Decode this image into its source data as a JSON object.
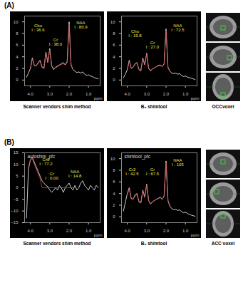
{
  "chart_data": [
    {
      "type": "line",
      "caption": "Scanner vendors shim method",
      "xlabel": "ppm",
      "xlim": [
        4.3,
        0.4
      ],
      "xticks": [
        4,
        3,
        2,
        1
      ],
      "ylim": [
        -1,
        11
      ],
      "yticks": [
        0,
        2,
        4,
        6,
        8,
        10
      ],
      "x": [
        4.2,
        4.1,
        4.0,
        3.9,
        3.8,
        3.7,
        3.6,
        3.5,
        3.4,
        3.3,
        3.2,
        3.1,
        3.0,
        2.9,
        2.8,
        2.7,
        2.6,
        2.5,
        2.4,
        2.3,
        2.2,
        2.1,
        2.0,
        1.9,
        1.8,
        1.7,
        1.6,
        1.5,
        1.4,
        1.3,
        1.2,
        1.1,
        1.0,
        0.9,
        0.8,
        0.7,
        0.6,
        0.5
      ],
      "series": [
        {
          "color": "#ffffff",
          "line_style": "solid",
          "values": [
            0.5,
            1.2,
            2.0,
            3.8,
            2.5,
            2.4,
            3.0,
            3.4,
            2.2,
            2.0,
            4.8,
            3.0,
            5.4,
            2.4,
            1.8,
            2.2,
            2.4,
            2.6,
            2.8,
            3.0,
            2.6,
            3.2,
            10.0,
            2.6,
            1.8,
            1.5,
            1.3,
            1.4,
            1.2,
            1.4,
            1.0,
            0.8,
            0.9,
            0.7,
            0.6,
            0.4,
            0.3,
            0.2
          ]
        },
        {
          "color": "#e04040",
          "line_style": "dashed",
          "values": [
            null,
            null,
            1.8,
            3.6,
            2.6,
            2.4,
            2.9,
            3.2,
            2.3,
            2.1,
            4.6,
            3.0,
            5.2,
            2.5,
            2.0,
            2.1,
            2.3,
            2.5,
            2.7,
            2.8,
            2.6,
            3.0,
            9.6,
            2.5,
            1.7,
            null,
            null,
            null,
            null,
            null,
            null,
            null,
            null,
            null,
            null,
            null,
            null,
            null
          ]
        }
      ],
      "annotations": [
        {
          "x": 3.6,
          "y": 9,
          "text": "Cho\nI : 36.6"
        },
        {
          "x": 2.7,
          "y": 6.5,
          "text": "Cr\nI : 38.0"
        },
        {
          "x": 1.4,
          "y": 9.5,
          "text": "NAA\nI : 80.9"
        }
      ]
    },
    {
      "type": "line",
      "caption": "B₀ shimtool",
      "xlabel": "ppm",
      "xlim": [
        4.3,
        0.4
      ],
      "xticks": [
        4,
        3,
        2,
        1
      ],
      "ylim": [
        -1,
        11
      ],
      "yticks": [
        0,
        2,
        4,
        6,
        8,
        10
      ],
      "x": [
        4.2,
        4.1,
        4.0,
        3.9,
        3.8,
        3.7,
        3.6,
        3.5,
        3.4,
        3.3,
        3.2,
        3.1,
        3.0,
        2.9,
        2.8,
        2.7,
        2.6,
        2.5,
        2.4,
        2.3,
        2.2,
        2.1,
        2.0,
        1.9,
        1.8,
        1.7,
        1.6,
        1.5,
        1.4,
        1.3,
        1.2,
        1.1,
        1.0,
        0.9,
        0.8,
        0.7,
        0.6,
        0.5
      ],
      "series": [
        {
          "color": "#ffffff",
          "line_style": "solid",
          "values": [
            0.4,
            1.0,
            1.8,
            3.4,
            2.0,
            2.2,
            2.8,
            3.0,
            1.8,
            1.6,
            3.8,
            2.6,
            4.6,
            2.0,
            1.6,
            1.9,
            2.1,
            2.3,
            2.5,
            2.6,
            2.3,
            2.8,
            8.8,
            2.2,
            1.5,
            1.2,
            1.1,
            1.2,
            1.0,
            1.1,
            0.8,
            0.6,
            0.7,
            0.5,
            0.4,
            0.3,
            0.2,
            0.1
          ]
        },
        {
          "color": "#e04040",
          "line_style": "dashed",
          "values": [
            null,
            null,
            1.6,
            3.2,
            2.1,
            2.2,
            2.7,
            2.9,
            1.9,
            1.7,
            3.6,
            2.6,
            4.4,
            2.1,
            1.7,
            1.9,
            2.1,
            2.3,
            2.4,
            2.5,
            2.3,
            2.7,
            8.5,
            2.1,
            1.4,
            null,
            null,
            null,
            null,
            null,
            null,
            null,
            null,
            null,
            null,
            null,
            null,
            null
          ]
        }
      ],
      "annotations": [
        {
          "x": 3.6,
          "y": 8,
          "text": "Cho\nI : 19.8"
        },
        {
          "x": 2.7,
          "y": 6,
          "text": "Cr\nI : 27.0"
        },
        {
          "x": 1.4,
          "y": 9,
          "text": "NAA\nI : 72.5"
        }
      ]
    },
    {
      "type": "line",
      "title": "autoshim_pfc",
      "caption": "Scanner vendors shim method",
      "xlabel": "ppm",
      "xlim": [
        4.3,
        0.4
      ],
      "xticks": [
        4,
        3,
        2,
        1
      ],
      "ylim": [
        -15,
        15
      ],
      "yticks": [
        -15,
        -10,
        -5,
        0,
        5,
        10,
        15
      ],
      "x": [
        4.2,
        4.1,
        4.0,
        3.9,
        3.8,
        3.7,
        3.6,
        3.5,
        3.4,
        3.3,
        3.2,
        3.1,
        3.0,
        2.9,
        2.8,
        2.7,
        2.6,
        2.5,
        2.4,
        2.3,
        2.2,
        2.1,
        2.0,
        1.9,
        1.8,
        1.7,
        1.6,
        1.5,
        1.4,
        1.3,
        1.2,
        1.1,
        1.0,
        0.9,
        0.8,
        0.7,
        0.6,
        0.5
      ],
      "series": [
        {
          "color": "#ffffff",
          "line_style": "solid",
          "values": [
            -13,
            8,
            12,
            13,
            11,
            9,
            7,
            5,
            3,
            2,
            1,
            0.5,
            -1,
            -2,
            -1,
            0,
            -1,
            1,
            0,
            -2,
            0,
            1,
            2,
            0,
            -1,
            1,
            -1,
            0,
            2,
            3,
            1,
            0,
            -1,
            1,
            0,
            -1,
            1,
            0
          ]
        },
        {
          "color": "#e04040",
          "line_style": "solid",
          "values": [
            null,
            9,
            12,
            12.5,
            10,
            8,
            6,
            4,
            0,
            0,
            0,
            0,
            0,
            0,
            0,
            0,
            0,
            0,
            0,
            0,
            0,
            0,
            0,
            0,
            0,
            null,
            null,
            null,
            null,
            null,
            null,
            null,
            null,
            null,
            null,
            null,
            null,
            null
          ]
        }
      ],
      "annotations": [
        {
          "x": 3.2,
          "y": 11,
          "text": "Cr2\nI : 77.2"
        },
        {
          "x": 2.9,
          "y": 5,
          "text": "Cr\nI : 0.00"
        },
        {
          "x": 1.7,
          "y": 6,
          "text": "NAA\nI : 14.8"
        }
      ]
    },
    {
      "type": "line",
      "title": "shimtool_pfc",
      "caption": "B₀ shimtool",
      "xlabel": "ppm",
      "xlim": [
        4.3,
        0.4
      ],
      "xticks": [
        4,
        3,
        2,
        1
      ],
      "ylim": [
        -1,
        11
      ],
      "yticks": [
        0,
        2,
        4,
        6,
        8,
        10
      ],
      "x": [
        4.2,
        4.1,
        4.0,
        3.9,
        3.8,
        3.7,
        3.6,
        3.5,
        3.4,
        3.3,
        3.2,
        3.1,
        3.0,
        2.9,
        2.8,
        2.7,
        2.6,
        2.5,
        2.4,
        2.3,
        2.2,
        2.1,
        2.0,
        1.9,
        1.8,
        1.7,
        1.6,
        1.5,
        1.4,
        1.3,
        1.2,
        1.1,
        1.0,
        0.9,
        0.8,
        0.7,
        0.6,
        0.5
      ],
      "series": [
        {
          "color": "#ffffff",
          "line_style": "solid",
          "values": [
            1.0,
            2.5,
            4.0,
            5.0,
            3.2,
            3.0,
            3.8,
            4.0,
            2.6,
            2.4,
            4.6,
            3.4,
            5.6,
            2.8,
            2.2,
            2.6,
            2.8,
            3.0,
            3.2,
            3.4,
            3.0,
            3.6,
            9.6,
            2.8,
            1.8,
            1.4,
            1.2,
            1.3,
            1.1,
            1.2,
            0.9,
            0.7,
            0.8,
            0.6,
            0.4,
            0.3,
            0.2,
            0.1
          ]
        },
        {
          "color": "#e04040",
          "line_style": "dashed",
          "values": [
            null,
            null,
            3.8,
            4.8,
            3.1,
            3.0,
            3.6,
            3.8,
            2.7,
            2.5,
            4.4,
            3.3,
            5.4,
            2.9,
            2.3,
            2.6,
            2.8,
            3.0,
            3.1,
            3.3,
            3.0,
            3.5,
            9.3,
            2.7,
            1.7,
            null,
            null,
            null,
            null,
            null,
            null,
            null,
            null,
            null,
            null,
            null,
            null,
            null
          ]
        }
      ],
      "annotations": [
        {
          "x": 3.75,
          "y": 7.8,
          "text": "Cr2\nI : 42.5"
        },
        {
          "x": 2.7,
          "y": 7.8,
          "text": "Cr\nI : 67.5"
        },
        {
          "x": 1.4,
          "y": 9.3,
          "text": "NAA\nI : 103"
        }
      ]
    }
  ],
  "panels": [
    {
      "label": "(A)",
      "voxel_label": "OCCvoxel"
    },
    {
      "label": "(B)",
      "voxel_label": "ACC voxel"
    }
  ]
}
